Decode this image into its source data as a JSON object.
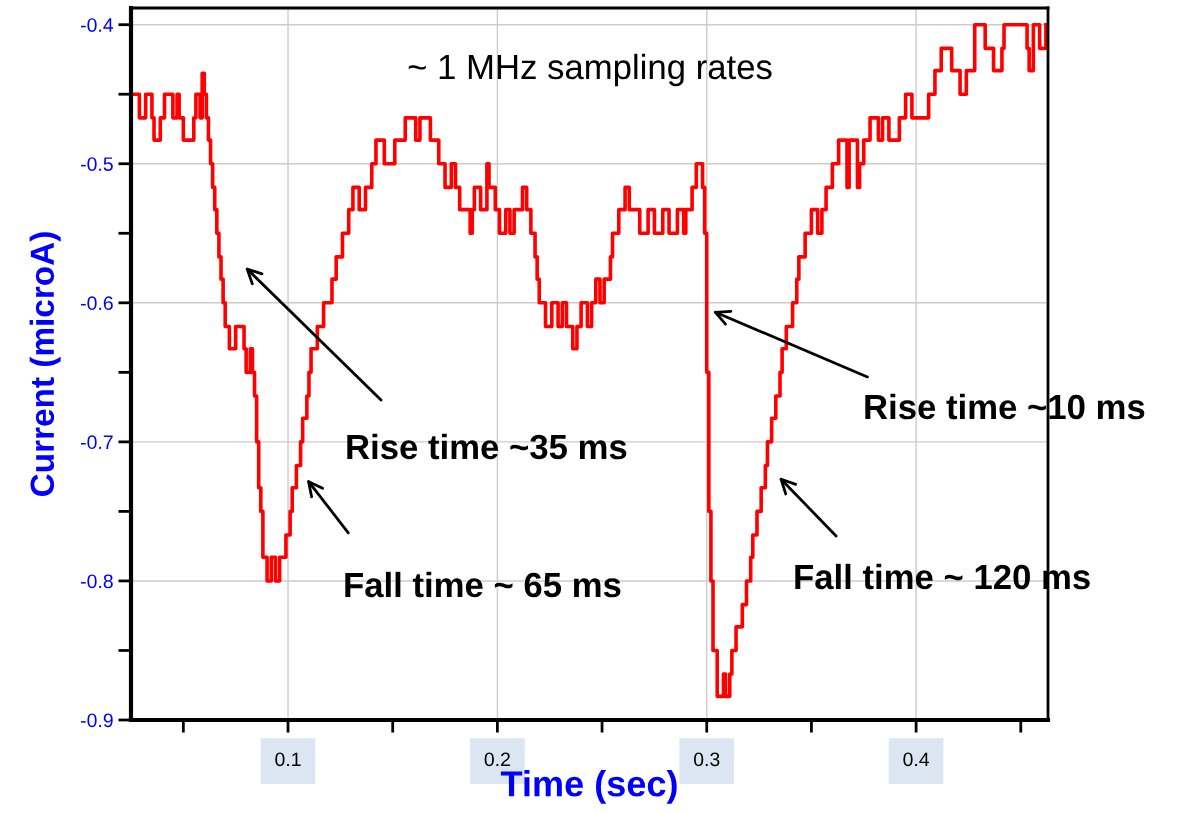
{
  "chart_data": {
    "type": "step",
    "xlabel": "Time (sec)",
    "ylabel": "Current (microA)",
    "xlim": [
      0.025,
      0.463
    ],
    "ylim": [
      -0.9,
      -0.388
    ],
    "xticks": [
      {
        "value": 0.05,
        "label": null
      },
      0.1,
      {
        "value": 0.15,
        "label": null
      },
      0.2,
      {
        "value": 0.25,
        "label": null
      },
      0.3,
      {
        "value": 0.35,
        "label": null
      },
      0.4,
      {
        "value": 0.45,
        "label": null
      }
    ],
    "yticks": [
      -0.4,
      {
        "value": -0.45,
        "label": null
      },
      -0.5,
      {
        "value": -0.55,
        "label": null
      },
      -0.6,
      {
        "value": -0.65,
        "label": null
      },
      -0.7,
      {
        "value": -0.75,
        "label": null
      },
      -0.8,
      {
        "value": -0.85,
        "label": null
      },
      -0.9
    ],
    "grid": true,
    "legend": false,
    "marker": "none",
    "line_style": "solid",
    "series": [
      {
        "color": "#ff0000",
        "x": [
          0.025,
          0.029,
          0.032,
          0.035,
          0.036,
          0.039,
          0.041,
          0.045,
          0.047,
          0.048,
          0.05,
          0.055,
          0.056,
          0.058,
          0.059,
          0.06,
          0.061,
          0.062,
          0.063,
          0.064,
          0.065,
          0.066,
          0.067,
          0.068,
          0.069,
          0.07,
          0.072,
          0.075,
          0.077,
          0.079,
          0.08,
          0.082,
          0.083,
          0.084,
          0.085,
          0.086,
          0.087,
          0.088,
          0.09,
          0.092,
          0.094,
          0.096,
          0.099,
          0.101,
          0.102,
          0.104,
          0.106,
          0.107,
          0.109,
          0.11,
          0.111,
          0.114,
          0.117,
          0.121,
          0.123,
          0.126,
          0.129,
          0.131,
          0.134,
          0.137,
          0.14,
          0.142,
          0.146,
          0.151,
          0.156,
          0.161,
          0.163,
          0.168,
          0.172,
          0.175,
          0.178,
          0.18,
          0.182,
          0.187,
          0.188,
          0.189,
          0.192,
          0.195,
          0.196,
          0.199,
          0.201,
          0.204,
          0.206,
          0.208,
          0.212,
          0.214,
          0.216,
          0.218,
          0.219,
          0.22,
          0.223,
          0.226,
          0.229,
          0.231,
          0.233,
          0.236,
          0.238,
          0.24,
          0.243,
          0.245,
          0.247,
          0.249,
          0.251,
          0.254,
          0.255,
          0.258,
          0.261,
          0.263,
          0.268,
          0.272,
          0.275,
          0.279,
          0.282,
          0.286,
          0.289,
          0.29,
          0.293,
          0.295,
          0.298,
          0.299,
          0.3,
          0.301,
          0.302,
          0.303,
          0.305,
          0.308,
          0.309,
          0.311,
          0.312,
          0.314,
          0.317,
          0.319,
          0.321,
          0.322,
          0.324,
          0.326,
          0.328,
          0.329,
          0.331,
          0.333,
          0.335,
          0.336,
          0.338,
          0.341,
          0.343,
          0.344,
          0.347,
          0.35,
          0.353,
          0.355,
          0.357,
          0.36,
          0.363,
          0.367,
          0.368,
          0.372,
          0.373,
          0.375,
          0.378,
          0.382,
          0.384,
          0.387,
          0.392,
          0.395,
          0.398,
          0.406,
          0.409,
          0.412,
          0.417,
          0.421,
          0.424,
          0.428,
          0.433,
          0.437,
          0.441,
          0.442,
          0.453,
          0.454,
          0.456,
          0.459,
          0.462
        ],
        "values": [
          -0.45,
          -0.467,
          -0.45,
          -0.467,
          -0.483,
          -0.467,
          -0.45,
          -0.467,
          -0.45,
          -0.467,
          -0.483,
          -0.467,
          -0.45,
          -0.467,
          -0.435,
          -0.45,
          -0.467,
          -0.483,
          -0.5,
          -0.517,
          -0.533,
          -0.55,
          -0.567,
          -0.583,
          -0.6,
          -0.617,
          -0.633,
          -0.617,
          -0.617,
          -0.633,
          -0.65,
          -0.633,
          -0.65,
          -0.667,
          -0.7,
          -0.733,
          -0.75,
          -0.783,
          -0.8,
          -0.783,
          -0.8,
          -0.783,
          -0.767,
          -0.75,
          -0.733,
          -0.717,
          -0.7,
          -0.683,
          -0.667,
          -0.65,
          -0.633,
          -0.617,
          -0.6,
          -0.583,
          -0.567,
          -0.55,
          -0.533,
          -0.517,
          -0.533,
          -0.517,
          -0.5,
          -0.483,
          -0.5,
          -0.483,
          -0.467,
          -0.483,
          -0.467,
          -0.483,
          -0.5,
          -0.517,
          -0.5,
          -0.517,
          -0.533,
          -0.55,
          -0.533,
          -0.517,
          -0.533,
          -0.5,
          -0.517,
          -0.533,
          -0.55,
          -0.533,
          -0.55,
          -0.533,
          -0.517,
          -0.533,
          -0.55,
          -0.567,
          -0.583,
          -0.6,
          -0.617,
          -0.6,
          -0.617,
          -0.6,
          -0.617,
          -0.633,
          -0.617,
          -0.6,
          -0.617,
          -0.6,
          -0.583,
          -0.6,
          -0.583,
          -0.567,
          -0.55,
          -0.533,
          -0.517,
          -0.533,
          -0.55,
          -0.533,
          -0.55,
          -0.533,
          -0.55,
          -0.533,
          -0.55,
          -0.533,
          -0.517,
          -0.5,
          -0.517,
          -0.55,
          -0.65,
          -0.75,
          -0.8,
          -0.85,
          -0.883,
          -0.867,
          -0.883,
          -0.867,
          -0.85,
          -0.833,
          -0.817,
          -0.8,
          -0.783,
          -0.767,
          -0.75,
          -0.733,
          -0.717,
          -0.7,
          -0.683,
          -0.667,
          -0.65,
          -0.633,
          -0.617,
          -0.6,
          -0.583,
          -0.567,
          -0.55,
          -0.533,
          -0.55,
          -0.533,
          -0.517,
          -0.5,
          -0.483,
          -0.517,
          -0.483,
          -0.517,
          -0.5,
          -0.483,
          -0.467,
          -0.483,
          -0.467,
          -0.483,
          -0.467,
          -0.45,
          -0.467,
          -0.45,
          -0.433,
          -0.417,
          -0.433,
          -0.45,
          -0.433,
          -0.4,
          -0.417,
          -0.433,
          -0.417,
          -0.4,
          -0.417,
          -0.433,
          -0.4,
          -0.417,
          -0.4
        ]
      }
    ],
    "annotations": [
      "~ 1 MHz sampling rates",
      "Rise time ~35 ms",
      "Fall time ~ 65 ms",
      "Rise time ~10 ms",
      "Fall time ~ 120 ms"
    ]
  }
}
